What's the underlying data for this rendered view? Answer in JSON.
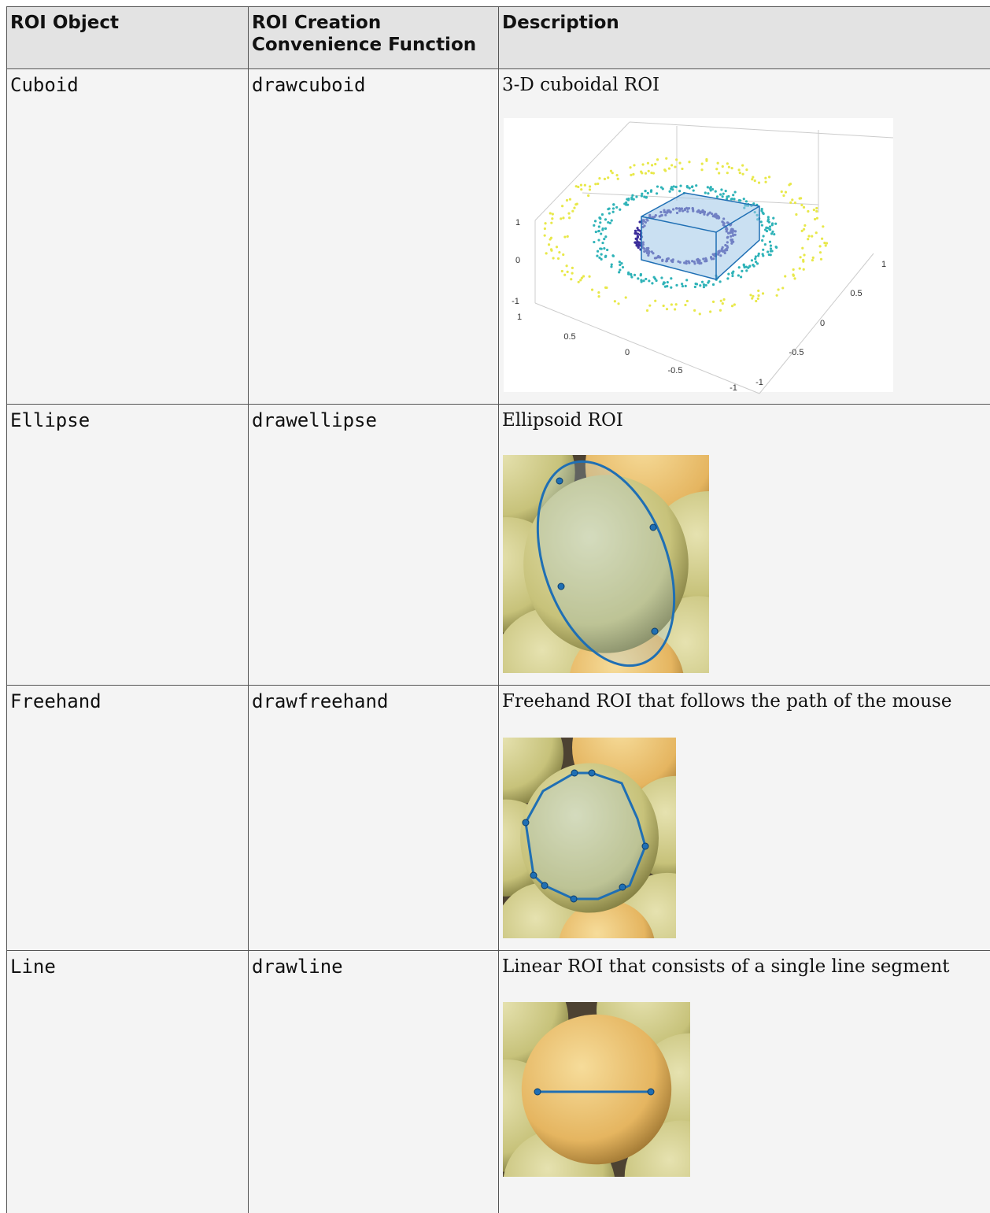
{
  "table": {
    "headers": [
      "ROI Object",
      "ROI Creation Convenience Function",
      "Description"
    ],
    "rows": [
      [
        "Cuboid",
        "drawcuboid",
        "3-D cuboidal ROI"
      ],
      [
        "Ellipse",
        "drawellipse",
        "Ellipsoid ROI"
      ],
      [
        "Freehand",
        "drawfreehand",
        "Freehand ROI that follows the path of the mouse"
      ],
      [
        "Line",
        "drawline",
        "Linear ROI that consists of a single line segment"
      ]
    ]
  },
  "cuboid_plot": {
    "z_ticks": [
      "1",
      "0",
      "-1"
    ],
    "x_ticks": [
      "1",
      "0.5",
      "0",
      "-0.5",
      "-1"
    ],
    "y_ticks": [
      "1",
      "0.5",
      "0",
      "-0.5",
      "-1"
    ]
  }
}
